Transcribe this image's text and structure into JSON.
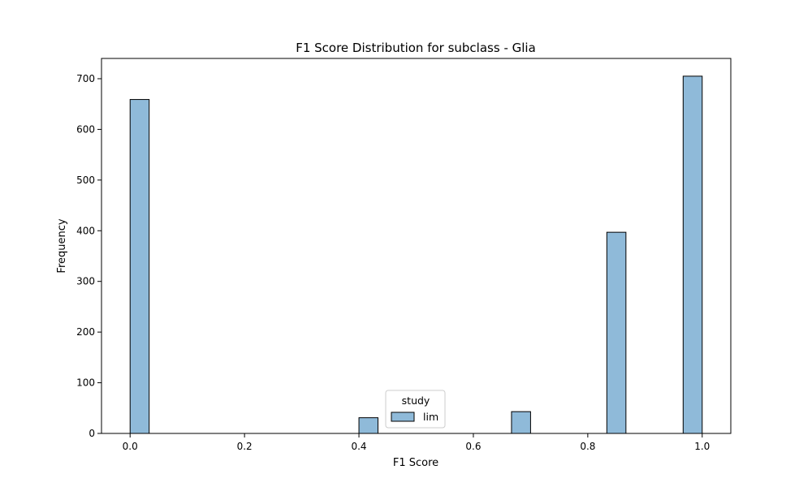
{
  "chart_data": {
    "type": "bar",
    "title": "F1 Score Distribution for subclass - Glia",
    "xlabel": "F1 Score",
    "ylabel": "Frequency",
    "xlim": [
      -0.05,
      1.05
    ],
    "ylim": [
      0,
      740
    ],
    "xticks": [
      0.0,
      0.2,
      0.4,
      0.6,
      0.8,
      1.0
    ],
    "xtick_labels": [
      "0.0",
      "0.2",
      "0.4",
      "0.6",
      "0.8",
      "1.0"
    ],
    "yticks": [
      0,
      100,
      200,
      300,
      400,
      500,
      600,
      700
    ],
    "ytick_labels": [
      "0",
      "100",
      "200",
      "300",
      "400",
      "500",
      "600",
      "700"
    ],
    "grid": false,
    "bin_width": 0.0333,
    "bins": [
      {
        "x0": 0.0,
        "x1": 0.0333,
        "value": 659
      },
      {
        "x0": 0.4,
        "x1": 0.4333,
        "value": 31
      },
      {
        "x0": 0.6667,
        "x1": 0.7,
        "value": 43
      },
      {
        "x0": 0.8333,
        "x1": 0.8667,
        "value": 397
      },
      {
        "x0": 0.9667,
        "x1": 1.0,
        "value": 705
      }
    ],
    "series": [
      {
        "name": "lim",
        "color": "#8fbad9",
        "edge_color": "#000000"
      }
    ],
    "legend": {
      "title": "study",
      "entries": [
        "lim"
      ],
      "placement": "lower-center"
    }
  }
}
